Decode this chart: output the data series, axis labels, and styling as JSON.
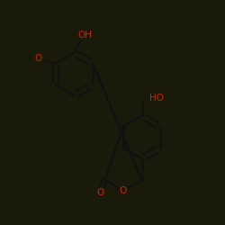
{
  "bg_color": "#1a1a0a",
  "bond_color": "#111111",
  "oxygen_color": "#cc2200",
  "line_width": 1.8,
  "font_size": 7.5,
  "figsize": [
    2.5,
    2.5
  ],
  "dpi": 100,
  "xlim": [
    0,
    10
  ],
  "ylim": [
    0,
    10
  ]
}
